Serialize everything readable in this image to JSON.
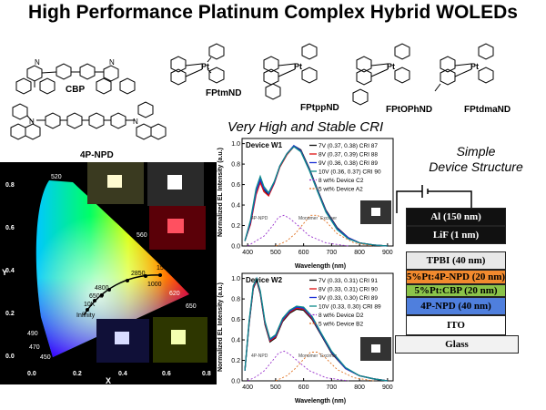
{
  "title": "High Performance Platinum Complex Hybrid WOLEDs",
  "molecules": {
    "cbp": "CBP",
    "npd": "4P-NPD",
    "fptmnd": "FPtmND",
    "fpttppnd": "FPtppND",
    "fptophnd": "FPtOPhND",
    "fptdmand": "FPtdmaND",
    "atom_pt": "Pt",
    "atom_n": "N",
    "atom_o": "O",
    "atom_f": "F"
  },
  "cie": {
    "y_label": "Y",
    "x_label": "X",
    "x_ticks": [
      "0.0",
      "0.2",
      "0.4",
      "0.6",
      "0.8"
    ],
    "y_ticks": [
      "0.0",
      "0.2",
      "0.4",
      "0.6",
      "0.8"
    ],
    "wavelength_labels": [
      "520",
      "560",
      "620",
      "650",
      "490",
      "470",
      "450"
    ],
    "planck_labels": [
      "2850",
      "1000",
      "4800",
      "6500",
      "10K",
      "Infinity",
      "1500"
    ]
  },
  "spectra_title": "Very High and Stable CRI",
  "chart_data": [
    {
      "type": "line",
      "title": "Device W1",
      "xlabel": "Wavelength (nm)",
      "ylabel": "Normalized EL Intensity (a.u.)",
      "xlim": [
        380,
        920
      ],
      "ylim": [
        0,
        1.05
      ],
      "x_ticks": [
        400,
        500,
        600,
        700,
        800,
        900
      ],
      "y_ticks": [
        "0.0",
        "0.2",
        "0.4",
        "0.6",
        "0.8",
        "1.0"
      ],
      "annotations": [
        "4P-NPD",
        "Monomer",
        "Excimer"
      ],
      "series": [
        {
          "name": "7V  (0.37, 0.38) CRI 87",
          "color": "#111111",
          "style": "solid",
          "points": [
            [
              390,
              0.05
            ],
            [
              410,
              0.22
            ],
            [
              430,
              0.52
            ],
            [
              445,
              0.64
            ],
            [
              458,
              0.55
            ],
            [
              475,
              0.5
            ],
            [
              495,
              0.62
            ],
            [
              515,
              0.78
            ],
            [
              540,
              0.9
            ],
            [
              565,
              0.98
            ],
            [
              590,
              0.94
            ],
            [
              620,
              0.76
            ],
            [
              650,
              0.55
            ],
            [
              680,
              0.35
            ],
            [
              720,
              0.18
            ],
            [
              760,
              0.08
            ],
            [
              800,
              0.03
            ],
            [
              850,
              0.01
            ],
            [
              900,
              0
            ]
          ]
        },
        {
          "name": "8V  (0.37, 0.39) CRI 88",
          "color": "#dd1111",
          "style": "solid",
          "points": [
            [
              390,
              0.05
            ],
            [
              410,
              0.21
            ],
            [
              430,
              0.5
            ],
            [
              445,
              0.62
            ],
            [
              458,
              0.53
            ],
            [
              475,
              0.49
            ],
            [
              495,
              0.61
            ],
            [
              515,
              0.77
            ],
            [
              540,
              0.89
            ],
            [
              565,
              0.97
            ],
            [
              590,
              0.93
            ],
            [
              620,
              0.75
            ],
            [
              650,
              0.54
            ],
            [
              680,
              0.34
            ],
            [
              720,
              0.17
            ],
            [
              760,
              0.08
            ],
            [
              800,
              0.03
            ],
            [
              850,
              0.01
            ],
            [
              900,
              0
            ]
          ]
        },
        {
          "name": "9V  (0.36, 0.38) CRI 89",
          "color": "#1b2fd6",
          "style": "solid",
          "points": [
            [
              390,
              0.05
            ],
            [
              410,
              0.23
            ],
            [
              430,
              0.53
            ],
            [
              445,
              0.65
            ],
            [
              458,
              0.56
            ],
            [
              475,
              0.51
            ],
            [
              495,
              0.62
            ],
            [
              515,
              0.78
            ],
            [
              540,
              0.9
            ],
            [
              565,
              0.98
            ],
            [
              590,
              0.93
            ],
            [
              620,
              0.75
            ],
            [
              650,
              0.54
            ],
            [
              680,
              0.34
            ],
            [
              720,
              0.17
            ],
            [
              760,
              0.08
            ],
            [
              800,
              0.03
            ],
            [
              850,
              0.01
            ],
            [
              900,
              0
            ]
          ]
        },
        {
          "name": "10V (0.36, 0.37) CRI 90",
          "color": "#0e8a8a",
          "style": "solid",
          "points": [
            [
              390,
              0.05
            ],
            [
              410,
              0.25
            ],
            [
              430,
              0.56
            ],
            [
              445,
              0.68
            ],
            [
              458,
              0.58
            ],
            [
              475,
              0.52
            ],
            [
              495,
              0.63
            ],
            [
              515,
              0.78
            ],
            [
              540,
              0.9
            ],
            [
              565,
              0.97
            ],
            [
              590,
              0.92
            ],
            [
              620,
              0.74
            ],
            [
              650,
              0.53
            ],
            [
              680,
              0.33
            ],
            [
              720,
              0.16
            ],
            [
              760,
              0.07
            ],
            [
              800,
              0.03
            ],
            [
              850,
              0.01
            ],
            [
              900,
              0
            ]
          ]
        },
        {
          "name": "8 wt% Device C2",
          "color": "#9932cc",
          "style": "dashed",
          "points": [
            [
              400,
              0
            ],
            [
              430,
              0.05
            ],
            [
              460,
              0.1
            ],
            [
              490,
              0.2
            ],
            [
              510,
              0.28
            ],
            [
              530,
              0.3
            ],
            [
              550,
              0.27
            ],
            [
              580,
              0.2
            ],
            [
              620,
              0.1
            ],
            [
              680,
              0.03
            ],
            [
              760,
              0
            ]
          ]
        },
        {
          "name": "5 wt% Device A2",
          "color": "#e07020",
          "style": "dashed",
          "points": [
            [
              500,
              0
            ],
            [
              540,
              0.05
            ],
            [
              570,
              0.12
            ],
            [
              600,
              0.22
            ],
            [
              625,
              0.3
            ],
            [
              650,
              0.3
            ],
            [
              680,
              0.24
            ],
            [
              720,
              0.12
            ],
            [
              780,
              0.03
            ],
            [
              850,
              0
            ]
          ]
        }
      ]
    },
    {
      "type": "line",
      "title": "Device W2",
      "xlabel": "Wavelength (nm)",
      "ylabel": "Normalized EL Intensity (a.u.)",
      "xlim": [
        380,
        920
      ],
      "ylim": [
        0,
        1.05
      ],
      "x_ticks": [
        400,
        500,
        600,
        700,
        800,
        900
      ],
      "y_ticks": [
        "0.0",
        "0.2",
        "0.4",
        "0.6",
        "0.8",
        "1.0"
      ],
      "annotations": [
        "4P-NPD",
        "Monomer",
        "Excimer"
      ],
      "series": [
        {
          "name": "7V  (0.33, 0.31) CRI 91",
          "color": "#111111",
          "style": "solid",
          "points": [
            [
              390,
              0.1
            ],
            [
              405,
              0.55
            ],
            [
              420,
              0.9
            ],
            [
              432,
              0.98
            ],
            [
              445,
              0.85
            ],
            [
              462,
              0.55
            ],
            [
              480,
              0.38
            ],
            [
              500,
              0.42
            ],
            [
              525,
              0.58
            ],
            [
              550,
              0.66
            ],
            [
              575,
              0.7
            ],
            [
              600,
              0.69
            ],
            [
              630,
              0.6
            ],
            [
              660,
              0.46
            ],
            [
              700,
              0.27
            ],
            [
              750,
              0.12
            ],
            [
              800,
              0.05
            ],
            [
              850,
              0.02
            ],
            [
              900,
              0
            ]
          ]
        },
        {
          "name": "8V  (0.33, 0.31) CRI 90",
          "color": "#dd1111",
          "style": "solid",
          "points": [
            [
              390,
              0.1
            ],
            [
              405,
              0.56
            ],
            [
              420,
              0.91
            ],
            [
              432,
              0.99
            ],
            [
              445,
              0.86
            ],
            [
              462,
              0.56
            ],
            [
              480,
              0.39
            ],
            [
              500,
              0.43
            ],
            [
              525,
              0.59
            ],
            [
              550,
              0.67
            ],
            [
              575,
              0.71
            ],
            [
              600,
              0.7
            ],
            [
              630,
              0.61
            ],
            [
              660,
              0.47
            ],
            [
              700,
              0.28
            ],
            [
              750,
              0.12
            ],
            [
              800,
              0.05
            ],
            [
              850,
              0.02
            ],
            [
              900,
              0
            ]
          ]
        },
        {
          "name": "9V  (0.33, 0.30) CRI 89",
          "color": "#1b2fd6",
          "style": "solid",
          "points": [
            [
              390,
              0.1
            ],
            [
              405,
              0.57
            ],
            [
              420,
              0.92
            ],
            [
              432,
              1.0
            ],
            [
              445,
              0.87
            ],
            [
              462,
              0.57
            ],
            [
              480,
              0.4
            ],
            [
              500,
              0.44
            ],
            [
              525,
              0.6
            ],
            [
              550,
              0.68
            ],
            [
              575,
              0.72
            ],
            [
              600,
              0.71
            ],
            [
              630,
              0.62
            ],
            [
              660,
              0.47
            ],
            [
              700,
              0.28
            ],
            [
              750,
              0.12
            ],
            [
              800,
              0.05
            ],
            [
              850,
              0.02
            ],
            [
              900,
              0
            ]
          ]
        },
        {
          "name": "10V (0.33, 0.30) CRI 89",
          "color": "#0e8a8a",
          "style": "solid",
          "points": [
            [
              390,
              0.1
            ],
            [
              405,
              0.58
            ],
            [
              420,
              0.93
            ],
            [
              432,
              1.0
            ],
            [
              445,
              0.88
            ],
            [
              462,
              0.58
            ],
            [
              480,
              0.41
            ],
            [
              500,
              0.45
            ],
            [
              525,
              0.61
            ],
            [
              550,
              0.69
            ],
            [
              575,
              0.73
            ],
            [
              600,
              0.72
            ],
            [
              630,
              0.63
            ],
            [
              660,
              0.48
            ],
            [
              700,
              0.29
            ],
            [
              750,
              0.13
            ],
            [
              800,
              0.05
            ],
            [
              850,
              0.02
            ],
            [
              900,
              0
            ]
          ]
        },
        {
          "name": "8 wt% Device D2",
          "color": "#9932cc",
          "style": "dashed",
          "points": [
            [
              400,
              0
            ],
            [
              430,
              0.04
            ],
            [
              460,
              0.1
            ],
            [
              490,
              0.2
            ],
            [
              510,
              0.27
            ],
            [
              530,
              0.29
            ],
            [
              550,
              0.26
            ],
            [
              580,
              0.19
            ],
            [
              620,
              0.1
            ],
            [
              680,
              0.03
            ],
            [
              760,
              0
            ]
          ]
        },
        {
          "name": "5 wt% Device B2",
          "color": "#e07020",
          "style": "dashed",
          "points": [
            [
              500,
              0
            ],
            [
              540,
              0.05
            ],
            [
              570,
              0.12
            ],
            [
              600,
              0.21
            ],
            [
              625,
              0.28
            ],
            [
              650,
              0.28
            ],
            [
              680,
              0.22
            ],
            [
              720,
              0.11
            ],
            [
              780,
              0.03
            ],
            [
              850,
              0
            ]
          ]
        }
      ]
    }
  ],
  "device": {
    "title_line1": "Simple",
    "title_line2": "Device Structure",
    "layers": [
      {
        "label": "Al (150 nm)",
        "color": "#111111",
        "text_color": "#ffffff"
      },
      {
        "label": "LiF (1 nm)",
        "color": "#111111",
        "text_color": "#ffffff"
      },
      {
        "label": "TPBI (40 nm)",
        "color": "#e8e8e8",
        "text_color": "#000000"
      },
      {
        "label": "5%Pt:4P-NPD (20 nm)",
        "color": "#f28a2e",
        "text_color": "#000000"
      },
      {
        "label": "5%Pt:CBP (20 nm)",
        "color": "#8bc34a",
        "text_color": "#000000"
      },
      {
        "label": "4P-NPD (40 nm)",
        "color": "#4f7fdd",
        "text_color": "#000000"
      },
      {
        "label": "ITO",
        "color": "#ffffff",
        "text_color": "#000000"
      },
      {
        "label": "Glass",
        "color": "#f2f2f2",
        "text_color": "#000000"
      }
    ]
  }
}
